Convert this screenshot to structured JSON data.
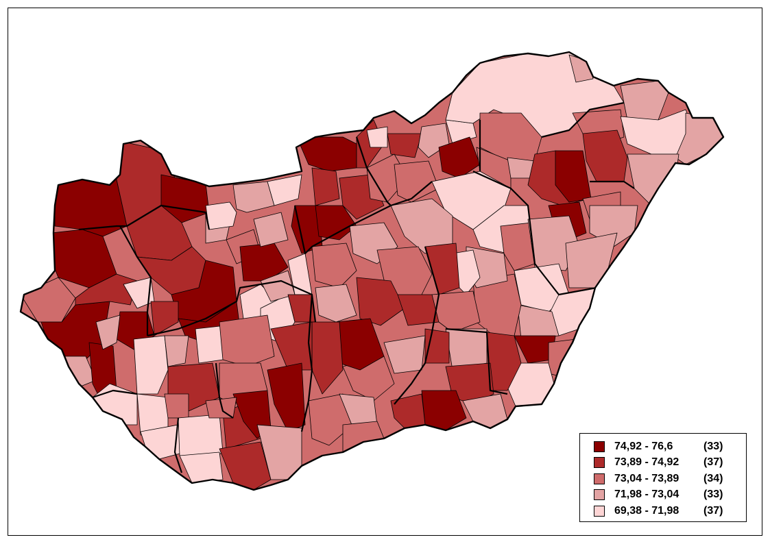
{
  "legend": {
    "classes": [
      {
        "range": "74,92 - 76,6",
        "count": "(33)",
        "color": "#8b0000"
      },
      {
        "range": "73,89 - 74,92",
        "count": "(37)",
        "color": "#ad2a2a"
      },
      {
        "range": "73,04 - 73,89",
        "count": "(34)",
        "color": "#cf6c6c"
      },
      {
        "range": "71,98 - 73,04",
        "count": "(33)",
        "color": "#e3a4a4"
      },
      {
        "range": "69,38 - 71,98",
        "count": "(37)",
        "color": "#fdd5d5"
      }
    ]
  }
}
